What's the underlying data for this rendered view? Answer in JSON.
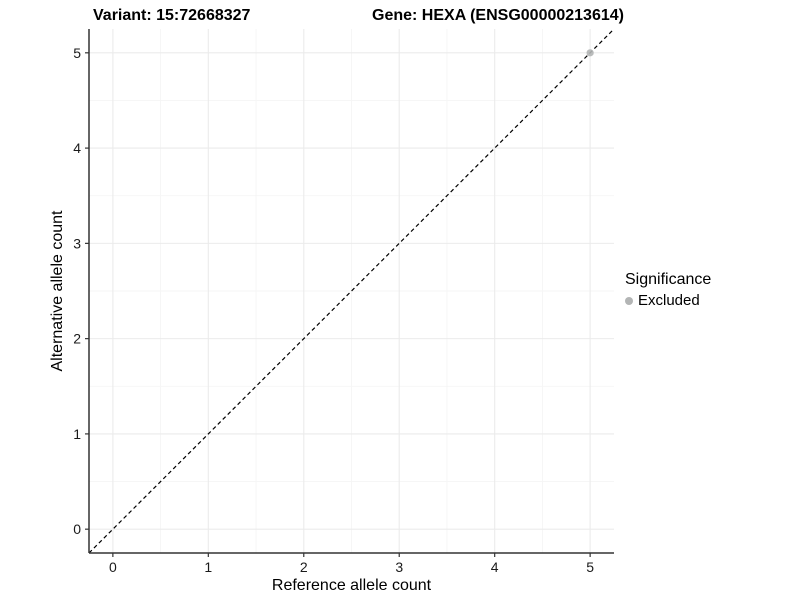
{
  "chart_data": {
    "type": "scatter",
    "title_left": "Variant: 15:72668327",
    "title_right": "Gene: HEXA (ENSG00000213614)",
    "xlabel": "Reference allele count",
    "ylabel": "Alternative allele count",
    "xlim": [
      -0.25,
      5.25
    ],
    "ylim": [
      -0.25,
      5.25
    ],
    "xticks": [
      0,
      1,
      2,
      3,
      4,
      5
    ],
    "yticks": [
      0,
      1,
      2,
      3,
      4,
      5
    ],
    "x_minor": [
      0.5,
      1.5,
      2.5,
      3.5,
      4.5
    ],
    "y_minor": [
      0.5,
      1.5,
      2.5,
      3.5,
      4.5
    ],
    "grid": {
      "major_color": "#ebebeb",
      "minor_color": "#f5f5f5",
      "background": "#ffffff"
    },
    "axis_color": "#333333",
    "identity_line": {
      "slope": 1,
      "intercept": 0,
      "linetype": "dashed",
      "color": "#000000"
    },
    "series": [
      {
        "name": "Excluded",
        "color": "#b3b5b5",
        "point_opacity": 0.9,
        "points": [
          [
            5,
            5
          ]
        ]
      }
    ],
    "legend": {
      "title": "Significance",
      "position": "right",
      "items": [
        {
          "label": "Excluded",
          "color": "#b3b5b5"
        }
      ]
    }
  }
}
